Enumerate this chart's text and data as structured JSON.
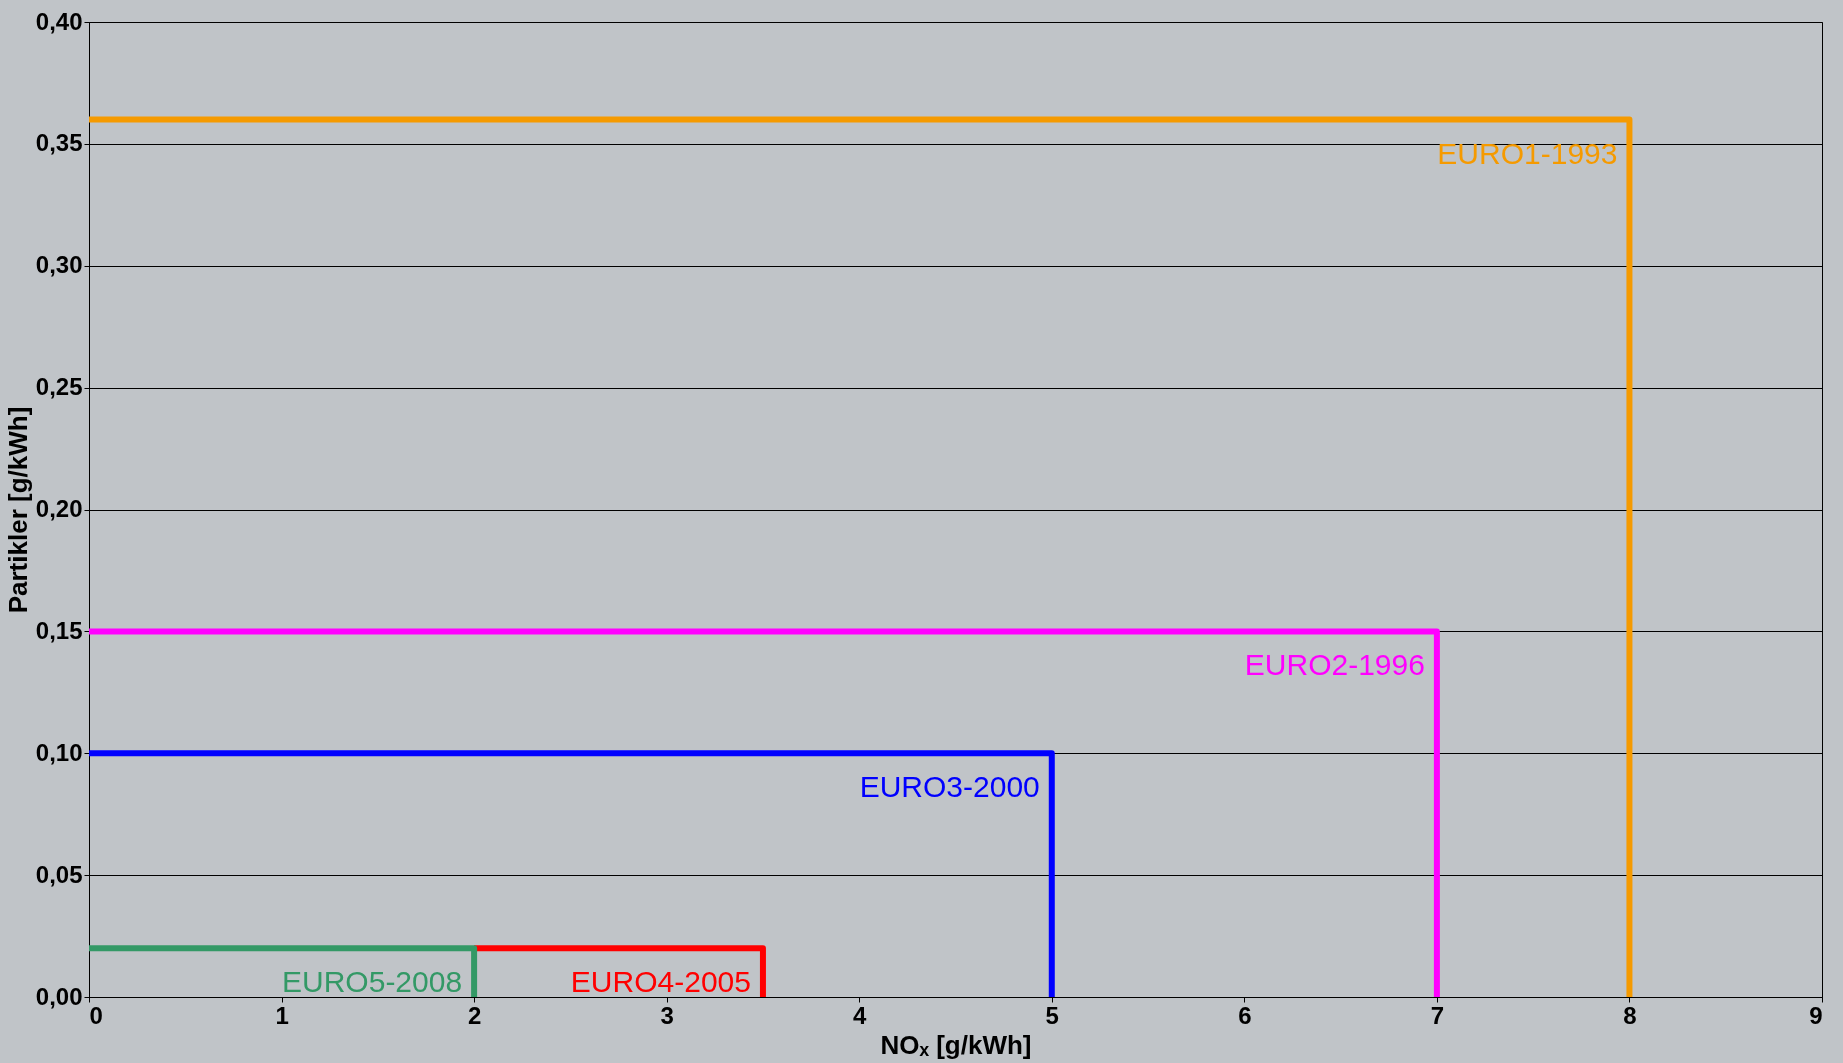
{
  "chart_data": {
    "type": "line",
    "xlabel": "NOₓ [g/kWh]",
    "ylabel": "Partikler [g/kWh]",
    "xlim": [
      0,
      9
    ],
    "xticks": [
      0,
      1,
      2,
      3,
      4,
      5,
      6,
      7,
      8,
      9
    ],
    "ylim": [
      0,
      0.4
    ],
    "yticks": [
      {
        "value": 0,
        "label": "0,00"
      },
      {
        "value": 0.05,
        "label": "0,05"
      },
      {
        "value": 0.1,
        "label": "0,10"
      },
      {
        "value": 0.15,
        "label": "0,15"
      },
      {
        "value": 0.2,
        "label": "0,20"
      },
      {
        "value": 0.25,
        "label": "0,25"
      },
      {
        "value": 0.3,
        "label": "0,30"
      },
      {
        "value": 0.35,
        "label": "0,35"
      },
      {
        "value": 0.4,
        "label": "0,40"
      }
    ],
    "grid": "y",
    "legend": false,
    "marker": "none",
    "line_style": "solid",
    "series": [
      {
        "name": "EURO1-1993",
        "color": "#f59a00",
        "x": [
          0,
          8,
          8
        ],
        "values": [
          0.36,
          0.36,
          0
        ]
      },
      {
        "name": "EURO2-1996",
        "color": "#ff00ff",
        "x": [
          0,
          7,
          7
        ],
        "values": [
          0.15,
          0.15,
          0
        ]
      },
      {
        "name": "EURO3-2000",
        "color": "#0000ff",
        "x": [
          0,
          5,
          5
        ],
        "values": [
          0.1,
          0.1,
          0
        ]
      },
      {
        "name": "EURO4-2005",
        "color": "#ff0000",
        "x": [
          2,
          3.5,
          3.5
        ],
        "values": [
          0.02,
          0.02,
          0
        ]
      },
      {
        "name": "EURO5-2008",
        "color": "#339966",
        "x": [
          0,
          2,
          2
        ],
        "values": [
          0.02,
          0.02,
          0
        ]
      }
    ]
  }
}
